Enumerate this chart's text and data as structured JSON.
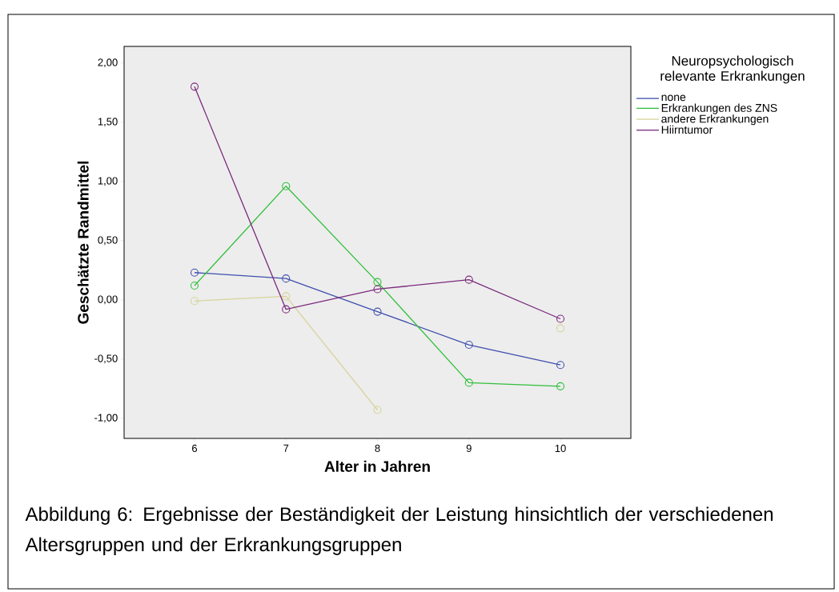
{
  "chart_data": {
    "type": "line",
    "xlabel": "Alter in Jahren",
    "ylabel": "Geschätzte Randmittel",
    "legend_title": "Neuropsychologisch relevante Erkrankungen",
    "x": [
      6,
      7,
      8,
      9,
      10
    ],
    "series": [
      {
        "name": "none",
        "color": "#3e4fad",
        "values": [
          0.23,
          0.18,
          -0.1,
          -0.38,
          -0.55
        ]
      },
      {
        "name": "Erkrankungen des ZNS",
        "color": "#2fbf3a",
        "values": [
          0.12,
          0.96,
          0.15,
          -0.7,
          -0.73
        ]
      },
      {
        "name": "andere Erkrankungen",
        "color": "#d8d39a",
        "values": [
          -0.01,
          0.03,
          -0.93,
          null,
          -0.24
        ]
      },
      {
        "name": "Hiirntumor",
        "color": "#7b2a7b",
        "values": [
          1.8,
          -0.08,
          0.09,
          0.17,
          -0.16
        ]
      }
    ],
    "xlim": [
      5.23,
      10.77
    ],
    "ylim": [
      -1.17,
      2.14
    ],
    "xticks": [
      6,
      7,
      8,
      9,
      10
    ],
    "yticks": [
      {
        "value": -1,
        "label": "-1,00"
      },
      {
        "value": -0.5,
        "label": "-0,50"
      },
      {
        "value": 0,
        "label": "0,00"
      },
      {
        "value": 0.5,
        "label": "0,50"
      },
      {
        "value": 1,
        "label": "1,00"
      },
      {
        "value": 1.5,
        "label": "1,50"
      },
      {
        "value": 2,
        "label": "2,00"
      }
    ],
    "marker": "circle",
    "line_style": "solid",
    "grid": false,
    "legend": "top right",
    "annotations": [
      "Abbildung 6: Ergebnisse der Beständigkeit der Leistung hinsichtlich der verschiedenen Altersgruppen und der Erkrankungsgruppen"
    ]
  }
}
